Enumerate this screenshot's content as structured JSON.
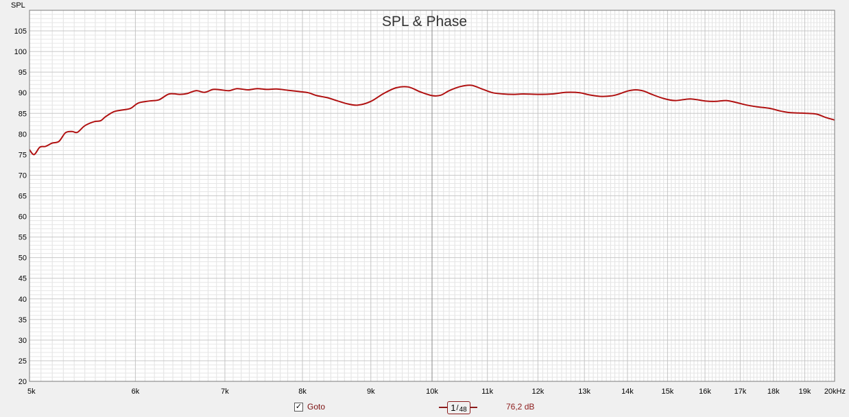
{
  "chart_data": {
    "type": "line",
    "title": "SPL & Phase",
    "ylabel": "SPL",
    "xscale": "log",
    "xlim": [
      5000,
      20000
    ],
    "ylim": [
      20,
      110
    ],
    "grid": true,
    "x_ticks": [
      {
        "v": 5000,
        "label": "5k"
      },
      {
        "v": 6000,
        "label": "6k"
      },
      {
        "v": 7000,
        "label": "7k"
      },
      {
        "v": 8000,
        "label": "8k"
      },
      {
        "v": 9000,
        "label": "9k"
      },
      {
        "v": 10000,
        "label": "10k"
      },
      {
        "v": 11000,
        "label": "11k"
      },
      {
        "v": 12000,
        "label": "12k"
      },
      {
        "v": 13000,
        "label": "13k"
      },
      {
        "v": 14000,
        "label": "14k"
      },
      {
        "v": 15000,
        "label": "15k"
      },
      {
        "v": 16000,
        "label": "16k"
      },
      {
        "v": 17000,
        "label": "17k"
      },
      {
        "v": 18000,
        "label": "18k"
      },
      {
        "v": 19000,
        "label": "19k"
      },
      {
        "v": 20000,
        "label": "20kHz"
      }
    ],
    "y_ticks": [
      20,
      25,
      30,
      35,
      40,
      45,
      50,
      55,
      60,
      65,
      70,
      75,
      80,
      85,
      90,
      95,
      100,
      105
    ],
    "series": [
      {
        "color": "#b01010",
        "points": [
          [
            5000,
            76.2
          ],
          [
            5040,
            75.0
          ],
          [
            5090,
            76.8
          ],
          [
            5140,
            77.0
          ],
          [
            5200,
            77.8
          ],
          [
            5260,
            78.2
          ],
          [
            5320,
            80.3
          ],
          [
            5380,
            80.6
          ],
          [
            5430,
            80.4
          ],
          [
            5500,
            82.0
          ],
          [
            5590,
            83.0
          ],
          [
            5650,
            83.2
          ],
          [
            5700,
            84.2
          ],
          [
            5780,
            85.4
          ],
          [
            5860,
            85.8
          ],
          [
            5950,
            86.2
          ],
          [
            6030,
            87.5
          ],
          [
            6150,
            88.0
          ],
          [
            6250,
            88.3
          ],
          [
            6360,
            89.7
          ],
          [
            6480,
            89.6
          ],
          [
            6560,
            89.8
          ],
          [
            6660,
            90.5
          ],
          [
            6760,
            90.1
          ],
          [
            6860,
            90.8
          ],
          [
            6950,
            90.7
          ],
          [
            7050,
            90.5
          ],
          [
            7150,
            91.0
          ],
          [
            7280,
            90.7
          ],
          [
            7400,
            91.0
          ],
          [
            7520,
            90.8
          ],
          [
            7650,
            90.9
          ],
          [
            7800,
            90.6
          ],
          [
            7950,
            90.3
          ],
          [
            8080,
            90.0
          ],
          [
            8200,
            89.3
          ],
          [
            8350,
            88.8
          ],
          [
            8500,
            88.0
          ],
          [
            8650,
            87.3
          ],
          [
            8800,
            87.0
          ],
          [
            9000,
            87.9
          ],
          [
            9200,
            89.8
          ],
          [
            9400,
            91.2
          ],
          [
            9600,
            91.4
          ],
          [
            9800,
            90.2
          ],
          [
            10000,
            89.3
          ],
          [
            10150,
            89.4
          ],
          [
            10300,
            90.5
          ],
          [
            10500,
            91.5
          ],
          [
            10700,
            91.8
          ],
          [
            10900,
            90.9
          ],
          [
            11100,
            90.0
          ],
          [
            11300,
            89.7
          ],
          [
            11500,
            89.6
          ],
          [
            11700,
            89.7
          ],
          [
            12000,
            89.6
          ],
          [
            12300,
            89.7
          ],
          [
            12600,
            90.1
          ],
          [
            12900,
            90.0
          ],
          [
            13100,
            89.5
          ],
          [
            13400,
            89.1
          ],
          [
            13700,
            89.4
          ],
          [
            14000,
            90.4
          ],
          [
            14200,
            90.7
          ],
          [
            14400,
            90.4
          ],
          [
            14600,
            89.6
          ],
          [
            14900,
            88.6
          ],
          [
            15200,
            88.1
          ],
          [
            15600,
            88.5
          ],
          [
            16000,
            88.0
          ],
          [
            16300,
            87.9
          ],
          [
            16600,
            88.1
          ],
          [
            16900,
            87.6
          ],
          [
            17200,
            87.0
          ],
          [
            17500,
            86.6
          ],
          [
            17900,
            86.2
          ],
          [
            18200,
            85.6
          ],
          [
            18500,
            85.2
          ],
          [
            18800,
            85.1
          ],
          [
            19100,
            85.0
          ],
          [
            19400,
            84.8
          ],
          [
            19700,
            84.0
          ],
          [
            20000,
            83.4
          ]
        ]
      }
    ]
  },
  "legend": {
    "goto_label": "Goto",
    "goto_checked": true,
    "smoothing_num": "1",
    "smoothing_den": "48",
    "readout": "76,2 dB"
  }
}
